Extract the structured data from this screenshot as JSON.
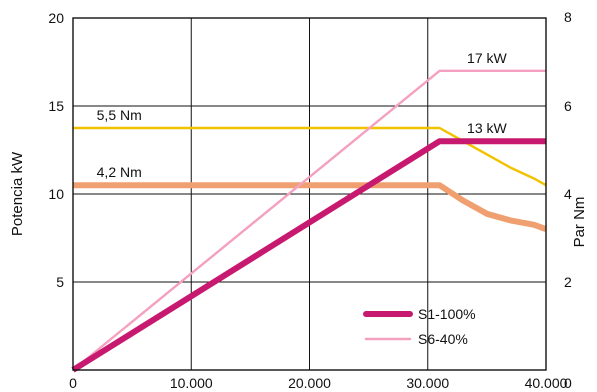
{
  "chart_data": {
    "type": "line",
    "x": {
      "min": 0,
      "max": 40000,
      "ticks": [
        0,
        10000,
        20000,
        30000,
        40000
      ],
      "tick_labels": [
        "0",
        "10.000",
        "20.000",
        "30.000",
        "40.000"
      ],
      "label": ""
    },
    "y_left": {
      "label": "Potencia  kW",
      "min": 0,
      "max": 20,
      "ticks": [
        5,
        10,
        15,
        20
      ],
      "tick_labels": [
        "5",
        "10",
        "15",
        "20"
      ]
    },
    "y_right": {
      "label": "Par  Nm",
      "min": 0,
      "max": 8,
      "ticks": [
        0,
        2,
        4,
        6,
        8
      ],
      "tick_labels": [
        "0",
        "2",
        "4",
        "6",
        "8"
      ]
    },
    "grid": true,
    "legend": {
      "position": "bottom-right"
    },
    "series": [
      {
        "name": "S1-100%",
        "axis": "left",
        "color": "#c7196f",
        "weight": "thick",
        "in_legend": true,
        "points": [
          [
            0,
            0
          ],
          [
            31000,
            13
          ],
          [
            40000,
            13
          ]
        ]
      },
      {
        "name": "S6-40%",
        "axis": "left",
        "color": "#f4a0c0",
        "weight": "thin",
        "in_legend": true,
        "points": [
          [
            0,
            0
          ],
          [
            31000,
            17
          ],
          [
            40000,
            17
          ]
        ]
      },
      {
        "axis": "right",
        "color": "#f2c200",
        "weight": "thin",
        "in_legend": false,
        "points": [
          [
            0,
            5.5
          ],
          [
            31000,
            5.5
          ],
          [
            33000,
            5.2
          ],
          [
            35000,
            4.9
          ],
          [
            37000,
            4.6
          ],
          [
            39000,
            4.35
          ],
          [
            40000,
            4.2
          ]
        ]
      },
      {
        "axis": "right",
        "color": "#f0a070",
        "weight": "thick",
        "in_legend": false,
        "points": [
          [
            0,
            4.2
          ],
          [
            31000,
            4.2
          ],
          [
            33000,
            3.85
          ],
          [
            35000,
            3.55
          ],
          [
            37000,
            3.4
          ],
          [
            39000,
            3.3
          ],
          [
            40000,
            3.2
          ]
        ]
      }
    ],
    "annotations": [
      {
        "text": "17 kW",
        "x": 35000,
        "y": 17,
        "axis": "left"
      },
      {
        "text": "13 kW",
        "x": 35000,
        "y": 13,
        "axis": "left"
      },
      {
        "text": "5,5 Nm",
        "x": 2000,
        "y": 5.5,
        "axis": "right"
      },
      {
        "text": "4,2 Nm",
        "x": 2000,
        "y": 4.2,
        "axis": "right"
      }
    ]
  }
}
